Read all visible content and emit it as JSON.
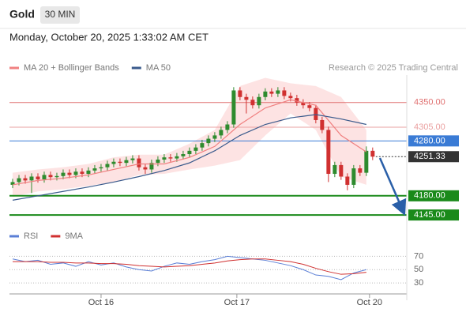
{
  "header": {
    "symbol": "Gold",
    "interval": "30 MIN",
    "timestamp": "Monday, October 20, 2025 1:33:02 AM CET",
    "source": "Research © 2025 Trading Central"
  },
  "chart_data": [
    {
      "type": "candlestick",
      "up_color": "#2e8b2e",
      "down_color": "#d03030",
      "open": [
        4200,
        4205,
        4212,
        4208,
        4215,
        4210,
        4218,
        4214,
        4216,
        4222,
        4218,
        4224,
        4220,
        4226,
        4230,
        4232,
        4238,
        4242,
        4240,
        4245,
        4248,
        4232,
        4228,
        4240,
        4246,
        4250,
        4248,
        4252,
        4256,
        4262,
        4268,
        4276,
        4284,
        4290,
        4300,
        4310,
        4372,
        4360,
        4355,
        4345,
        4360,
        4370,
        4366,
        4372,
        4362,
        4358,
        4350,
        4345,
        4340,
        4318,
        4300,
        4220,
        4236,
        4215,
        4200,
        4230,
        4222,
        4262
      ],
      "high": [
        4211,
        4218,
        4218,
        4221,
        4221,
        4224,
        4224,
        4222,
        4228,
        4228,
        4230,
        4230,
        4232,
        4236,
        4238,
        4244,
        4248,
        4248,
        4251,
        4254,
        4254,
        4238,
        4246,
        4252,
        4256,
        4256,
        4258,
        4262,
        4268,
        4274,
        4282,
        4290,
        4296,
        4306,
        4316,
        4378,
        4378,
        4366,
        4361,
        4366,
        4376,
        4376,
        4378,
        4378,
        4368,
        4364,
        4356,
        4351,
        4346,
        4324,
        4306,
        4242,
        4242,
        4221,
        4236,
        4236,
        4270,
        4268
      ],
      "low": [
        4194,
        4199,
        4202,
        4185,
        4204,
        4204,
        4208,
        4208,
        4210,
        4212,
        4212,
        4214,
        4214,
        4220,
        4224,
        4226,
        4232,
        4234,
        4234,
        4239,
        4226,
        4220,
        4222,
        4234,
        4240,
        4242,
        4242,
        4246,
        4250,
        4256,
        4262,
        4270,
        4278,
        4284,
        4294,
        4304,
        4354,
        4330,
        4339,
        4339,
        4354,
        4360,
        4360,
        4356,
        4352,
        4344,
        4339,
        4334,
        4312,
        4294,
        4205,
        4214,
        4209,
        4190,
        4194,
        4216,
        4216,
        4245
      ],
      "close": [
        4205,
        4212,
        4208,
        4215,
        4210,
        4218,
        4214,
        4216,
        4222,
        4218,
        4224,
        4220,
        4226,
        4230,
        4232,
        4238,
        4242,
        4240,
        4245,
        4248,
        4232,
        4228,
        4240,
        4246,
        4250,
        4248,
        4252,
        4256,
        4262,
        4268,
        4276,
        4284,
        4290,
        4300,
        4310,
        4372,
        4360,
        4355,
        4345,
        4360,
        4370,
        4366,
        4372,
        4362,
        4358,
        4350,
        4345,
        4340,
        4318,
        4300,
        4220,
        4236,
        4215,
        4200,
        4230,
        4222,
        4262,
        4251.33
      ],
      "series": [
        {
          "name": "MA 20 + Bollinger Bands",
          "color": "#f08080",
          "band_color": "#fbd0d0",
          "x": [
            0,
            4,
            8,
            12,
            16,
            20,
            24,
            28,
            32,
            36,
            40,
            44,
            48,
            52,
            56
          ],
          "values": [
            4200,
            4208,
            4212,
            4218,
            4228,
            4238,
            4238,
            4250,
            4270,
            4310,
            4340,
            4355,
            4345,
            4290,
            4260
          ],
          "upper": [
            4222,
            4228,
            4232,
            4238,
            4250,
            4255,
            4255,
            4275,
            4300,
            4380,
            4395,
            4385,
            4380,
            4360,
            4300
          ],
          "lower": [
            4178,
            4188,
            4192,
            4198,
            4205,
            4218,
            4220,
            4228,
            4235,
            4245,
            4290,
            4330,
            4300,
            4215,
            4200
          ]
        },
        {
          "name": "MA 50",
          "color": "#3a5a8c",
          "x": [
            0,
            4,
            8,
            12,
            16,
            20,
            24,
            28,
            32,
            36,
            40,
            44,
            48,
            52,
            56
          ],
          "values": [
            4172,
            4180,
            4188,
            4196,
            4205,
            4215,
            4226,
            4240,
            4262,
            4290,
            4310,
            4322,
            4328,
            4320,
            4310
          ]
        }
      ],
      "levels": [
        {
          "value": 4350,
          "label": "4350.00",
          "color": "#e07070",
          "style": "solid",
          "label_style": "text"
        },
        {
          "value": 4305,
          "label": "4305.00",
          "color": "#eaa0a0",
          "style": "solid",
          "label_style": "text"
        },
        {
          "value": 4280,
          "label": "4280.00",
          "color": "#3a7bd5",
          "style": "solid",
          "label_style": "box"
        },
        {
          "value": 4251.33,
          "label": "4251.33",
          "color": "#333333",
          "style": "dotted",
          "label_style": "box"
        },
        {
          "value": 4180,
          "label": "4180.00",
          "color": "#1a8a1a",
          "style": "thick",
          "label_style": "box"
        },
        {
          "value": 4145,
          "label": "4145.00",
          "color": "#1a8a1a",
          "style": "thick",
          "label_style": "box"
        }
      ],
      "xlim": [
        -0.5,
        62.4
      ],
      "ylim": [
        4125,
        4400
      ],
      "xticks": [
        {
          "value": 14,
          "label": "Oct 16"
        },
        {
          "value": 35.5,
          "label": "Oct 17"
        },
        {
          "value": 56.5,
          "label": "Oct 20"
        }
      ]
    },
    {
      "type": "line",
      "series": [
        {
          "name": "RSI",
          "color": "#5b7fd6",
          "x": [
            0,
            2,
            4,
            6,
            8,
            10,
            12,
            14,
            16,
            18,
            20,
            22,
            24,
            26,
            28,
            30,
            32,
            34,
            36,
            38,
            40,
            42,
            44,
            46,
            48,
            50,
            52,
            54,
            56
          ],
          "values": [
            66,
            62,
            64,
            58,
            60,
            55,
            62,
            57,
            60,
            54,
            50,
            48,
            55,
            60,
            58,
            62,
            65,
            70,
            68,
            66,
            64,
            60,
            56,
            50,
            42,
            40,
            35,
            45,
            50
          ]
        },
        {
          "name": "9MA",
          "color": "#d03030",
          "x": [
            0,
            2,
            4,
            6,
            8,
            10,
            12,
            14,
            16,
            18,
            20,
            22,
            24,
            26,
            28,
            30,
            32,
            34,
            36,
            38,
            40,
            42,
            44,
            46,
            48,
            50,
            52,
            54,
            56
          ],
          "values": [
            62,
            62,
            62,
            61,
            61,
            60,
            60,
            59,
            59,
            58,
            56,
            55,
            54,
            55,
            56,
            58,
            60,
            63,
            65,
            66,
            66,
            64,
            62,
            58,
            52,
            47,
            43,
            44,
            46
          ]
        }
      ],
      "xlim": [
        -0.5,
        62.4
      ],
      "ylim": [
        16,
        87
      ],
      "yticks": [
        70,
        50,
        30
      ],
      "grid": true
    }
  ]
}
